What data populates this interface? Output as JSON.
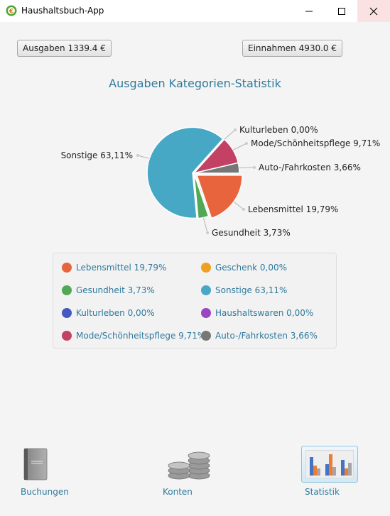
{
  "window": {
    "title": "Haushaltsbuch-App"
  },
  "summary": {
    "expenses_button": "Ausgaben 1339.4 €",
    "income_button": "Einnahmen 4930.0 €"
  },
  "chart_data": {
    "type": "pie",
    "title": "Ausgaben Kategorien-Statistik",
    "slices": [
      {
        "name": "Lebensmittel",
        "value": 19.79,
        "label": "Lebensmittel 19,79%",
        "color": "#e8643c"
      },
      {
        "name": "Gesundheit",
        "value": 3.73,
        "label": "Gesundheit 3,73%",
        "color": "#52a855"
      },
      {
        "name": "Sonstige",
        "value": 63.11,
        "label": "Sonstige 63,11%",
        "color": "#47a8c6"
      },
      {
        "name": "Kulturleben",
        "value": 0.0,
        "label": "Kulturleben 0,00%",
        "color": "#4458c0"
      },
      {
        "name": "Mode/Schönheitspflege",
        "value": 9.71,
        "label": "Mode/Schönheitspflege 9,71%",
        "color": "#c24164"
      },
      {
        "name": "Auto-/Fahrkosten",
        "value": 3.66,
        "label": "Auto-/Fahrkosten 3,66%",
        "color": "#777777"
      }
    ]
  },
  "legend": {
    "items": [
      {
        "label": "Lebensmittel 19,79%",
        "color": "#e8643c"
      },
      {
        "label": "Geschenk 0,00%",
        "color": "#f0a020"
      },
      {
        "label": "Gesundheit 3,73%",
        "color": "#52a855"
      },
      {
        "label": "Sonstige 63,11%",
        "color": "#47a8c6"
      },
      {
        "label": "Kulturleben 0,00%",
        "color": "#4458c0"
      },
      {
        "label": "Haushaltswaren 0,00%",
        "color": "#9a45c4"
      },
      {
        "label": "Mode/Schönheitspflege 9,71%",
        "color": "#c24164"
      },
      {
        "label": "Auto-/Fahrkosten 3,66%",
        "color": "#777777"
      }
    ]
  },
  "nav": {
    "bookings": {
      "label": "Buchungen",
      "icon": "book-icon"
    },
    "accounts": {
      "label": "Konten",
      "icon": "coins-icon"
    },
    "statistics": {
      "label": "Statistik",
      "icon": "bar-chart-icon"
    }
  }
}
